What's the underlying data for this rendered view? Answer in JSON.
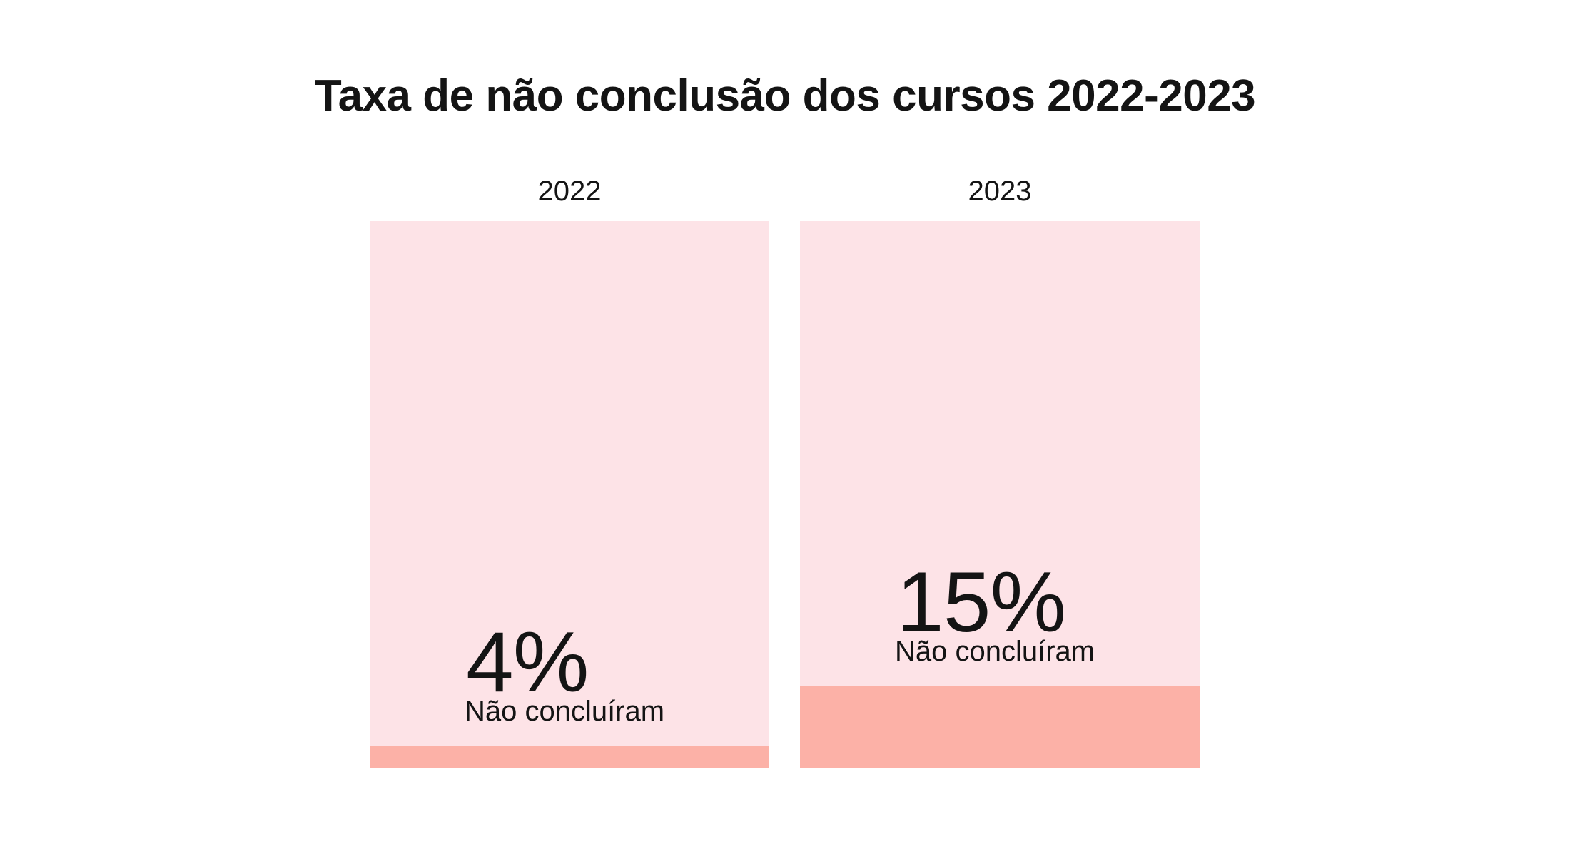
{
  "chart_data": {
    "type": "bar",
    "title": "Taxa de não conclusão dos cursos 2022-2023",
    "categories": [
      "2022",
      "2023"
    ],
    "values": [
      4,
      15
    ],
    "value_labels": [
      "4%",
      "15%"
    ],
    "caption": "Não concluíram",
    "ylim": [
      0,
      100
    ],
    "unit": "%",
    "grid": false,
    "legend": "none",
    "colors": {
      "background_bar": "#fde3e7",
      "value_bar": "#fcb1a7"
    }
  }
}
